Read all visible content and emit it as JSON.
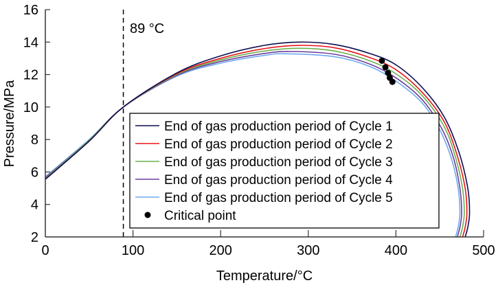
{
  "chart_data": {
    "type": "line",
    "title": "",
    "xlabel": "Temperature/°C",
    "ylabel": "Pressure/MPa",
    "xlim": [
      0,
      500
    ],
    "ylim": [
      2,
      16
    ],
    "xticks": [
      0,
      100,
      200,
      300,
      400,
      500
    ],
    "yticks": [
      2,
      4,
      6,
      8,
      10,
      12,
      14,
      16
    ],
    "grid": false,
    "legend_position": "bottom-center",
    "annotation": {
      "label": "89 °C",
      "x": 89,
      "style": "dashed-vertical-line"
    },
    "series": [
      {
        "name": "End of gas production period of Cycle 1",
        "color": "#0b0c4f",
        "points": [
          [
            0,
            5.55
          ],
          [
            50,
            7.9
          ],
          [
            89,
            10.0
          ],
          [
            150,
            12.1
          ],
          [
            200,
            13.15
          ],
          [
            250,
            13.8
          ],
          [
            290,
            14.0
          ],
          [
            330,
            13.85
          ],
          [
            370,
            13.3
          ],
          [
            400,
            12.6
          ],
          [
            430,
            11.2
          ],
          [
            455,
            9.4
          ],
          [
            472,
            7.2
          ],
          [
            482,
            5.0
          ],
          [
            484,
            3.5
          ],
          [
            482,
            2.6
          ],
          [
            479,
            2.0
          ]
        ],
        "critical_point": [
          384,
          12.85
        ]
      },
      {
        "name": "End of gas production period of Cycle 2",
        "color": "#e8141c",
        "points": [
          [
            0,
            5.55
          ],
          [
            50,
            7.9
          ],
          [
            89,
            10.0
          ],
          [
            150,
            12.05
          ],
          [
            200,
            13.0
          ],
          [
            250,
            13.6
          ],
          [
            290,
            13.8
          ],
          [
            330,
            13.65
          ],
          [
            370,
            13.05
          ],
          [
            400,
            12.3
          ],
          [
            430,
            10.9
          ],
          [
            455,
            9.1
          ],
          [
            470,
            7.0
          ],
          [
            479,
            5.0
          ],
          [
            481,
            3.5
          ],
          [
            479,
            2.6
          ],
          [
            476,
            2.0
          ]
        ],
        "critical_point": [
          388,
          12.45
        ]
      },
      {
        "name": "End of gas production period of Cycle 3",
        "color": "#6ab04c",
        "points": [
          [
            0,
            5.6
          ],
          [
            50,
            7.95
          ],
          [
            89,
            10.0
          ],
          [
            150,
            12.0
          ],
          [
            200,
            12.9
          ],
          [
            250,
            13.45
          ],
          [
            290,
            13.62
          ],
          [
            330,
            13.45
          ],
          [
            370,
            12.85
          ],
          [
            400,
            12.05
          ],
          [
            430,
            10.7
          ],
          [
            455,
            8.8
          ],
          [
            468,
            6.9
          ],
          [
            476,
            5.0
          ],
          [
            478,
            3.5
          ],
          [
            476,
            2.6
          ],
          [
            473,
            2.0
          ]
        ],
        "critical_point": [
          391,
          12.1
        ]
      },
      {
        "name": "End of gas production period of Cycle 4",
        "color": "#6a3d9a",
        "points": [
          [
            0,
            5.65
          ],
          [
            50,
            7.95
          ],
          [
            89,
            10.0
          ],
          [
            150,
            11.95
          ],
          [
            200,
            12.8
          ],
          [
            250,
            13.3
          ],
          [
            280,
            13.42
          ],
          [
            330,
            13.25
          ],
          [
            370,
            12.65
          ],
          [
            400,
            11.8
          ],
          [
            430,
            10.45
          ],
          [
            453,
            8.6
          ],
          [
            466,
            6.8
          ],
          [
            473,
            5.0
          ],
          [
            475,
            3.5
          ],
          [
            473,
            2.6
          ],
          [
            470,
            2.0
          ]
        ],
        "critical_point": [
          393,
          11.8
        ]
      },
      {
        "name": "End of gas production period of Cycle 5",
        "color": "#6fa8f0",
        "points": [
          [
            0,
            5.7
          ],
          [
            50,
            8.0
          ],
          [
            89,
            10.0
          ],
          [
            150,
            11.9
          ],
          [
            200,
            12.7
          ],
          [
            250,
            13.18
          ],
          [
            275,
            13.28
          ],
          [
            330,
            13.1
          ],
          [
            370,
            12.5
          ],
          [
            400,
            11.6
          ],
          [
            430,
            10.25
          ],
          [
            451,
            8.5
          ],
          [
            464,
            6.7
          ],
          [
            471,
            5.0
          ],
          [
            473,
            3.5
          ],
          [
            471,
            2.6
          ],
          [
            468,
            2.0
          ]
        ],
        "critical_point": [
          396,
          11.55
        ]
      }
    ],
    "legend": [
      {
        "label": "End of gas production period of Cycle 1",
        "kind": "line",
        "color": "#0b0c4f"
      },
      {
        "label": "End of gas production period of Cycle 2",
        "kind": "line",
        "color": "#e8141c"
      },
      {
        "label": "End of gas production period of Cycle 3",
        "kind": "line",
        "color": "#6ab04c"
      },
      {
        "label": "End of gas production period of Cycle 4",
        "kind": "line",
        "color": "#6a3d9a"
      },
      {
        "label": "End of gas production period of Cycle 5",
        "kind": "line",
        "color": "#6fa8f0"
      },
      {
        "label": "Critical point",
        "kind": "marker",
        "color": "#000000"
      }
    ]
  }
}
